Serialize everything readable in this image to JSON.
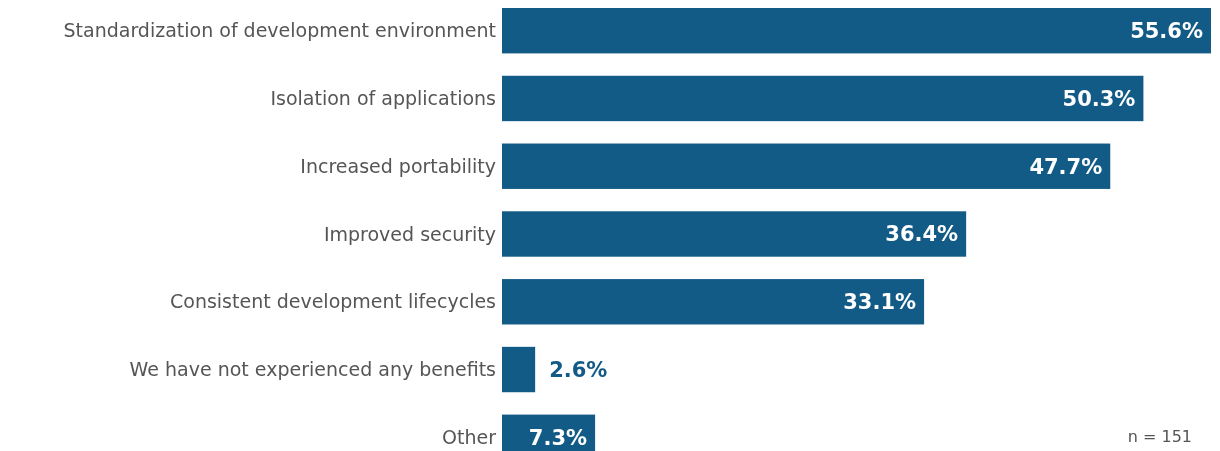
{
  "chart_data": {
    "type": "bar",
    "orientation": "horizontal",
    "categories": [
      "Standardization of development environment",
      "Isolation of applications",
      "Increased portability",
      "Improved security",
      "Consistent development lifecycles",
      "We have not experienced any benefits",
      "Other"
    ],
    "values": [
      55.6,
      50.3,
      47.7,
      36.4,
      33.1,
      2.6,
      7.3
    ],
    "value_labels": [
      "55.6%",
      "50.3%",
      "47.7%",
      "36.4%",
      "33.1%",
      "2.6%",
      "7.3%"
    ],
    "color": "#135b87",
    "annotations": [
      "n = 151"
    ]
  }
}
